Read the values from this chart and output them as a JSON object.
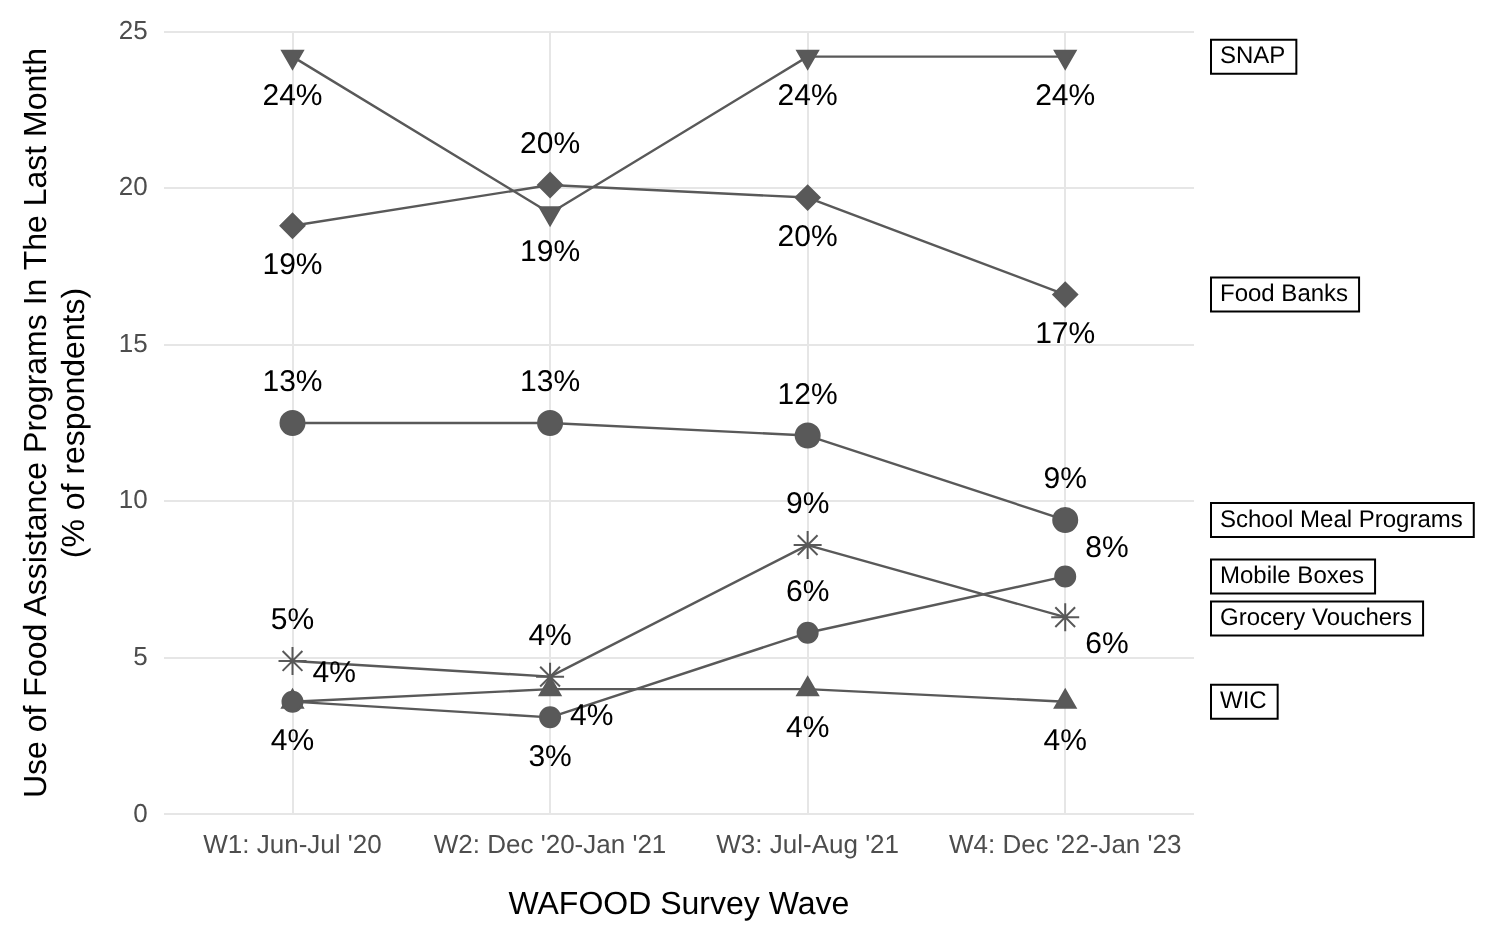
{
  "chart_data": {
    "type": "line",
    "xlabel": "WAFOOD Survey Wave",
    "ylabel": "Use of Food Assistance Programs In The Last Month\n(% of respondents)",
    "categories": [
      "W1: Jun-Jul '20",
      "W2: Dec '20-Jan '21",
      "W3: Jul-Aug '21",
      "W4: Dec '22-Jan '23"
    ],
    "ylim": [
      0,
      25
    ],
    "yticks": [
      0,
      5,
      10,
      15,
      20,
      25
    ],
    "grid": true,
    "legend": false,
    "series": [
      {
        "name": "SNAP",
        "color": "#595959",
        "marker": "triangle-down",
        "values": [
          24.2,
          19.2,
          24.2,
          24.2
        ],
        "value_labels": [
          "24%",
          "19%",
          "24%",
          "24%"
        ]
      },
      {
        "name": "Food Banks",
        "color": "#595959",
        "marker": "diamond",
        "values": [
          18.8,
          20.1,
          19.7,
          16.6
        ],
        "value_labels": [
          "19%",
          "20%",
          "20%",
          "17%"
        ]
      },
      {
        "name": "School Meal Programs",
        "color": "#595959",
        "marker": "circle",
        "values": [
          12.5,
          12.5,
          12.1,
          9.4
        ],
        "value_labels": [
          "13%",
          "13%",
          "12%",
          "9%"
        ]
      },
      {
        "name": "Grocery Vouchers",
        "color": "#595959",
        "marker": "cross",
        "values": [
          4.9,
          4.4,
          8.6,
          6.3
        ],
        "value_labels": [
          "5%",
          "4%",
          "9%",
          "6%"
        ]
      },
      {
        "name": "Mobile Boxes",
        "color": "#595959",
        "marker": "circle",
        "values": [
          3.6,
          3.1,
          5.8,
          7.6
        ],
        "value_labels": [
          "4%",
          "3%",
          "6%",
          "8%"
        ]
      },
      {
        "name": "WIC",
        "color": "#595959",
        "marker": "triangle",
        "values": [
          3.6,
          4.0,
          4.0,
          3.6
        ],
        "value_labels": [
          "4%",
          "4%",
          "4%",
          "4%"
        ]
      }
    ]
  }
}
